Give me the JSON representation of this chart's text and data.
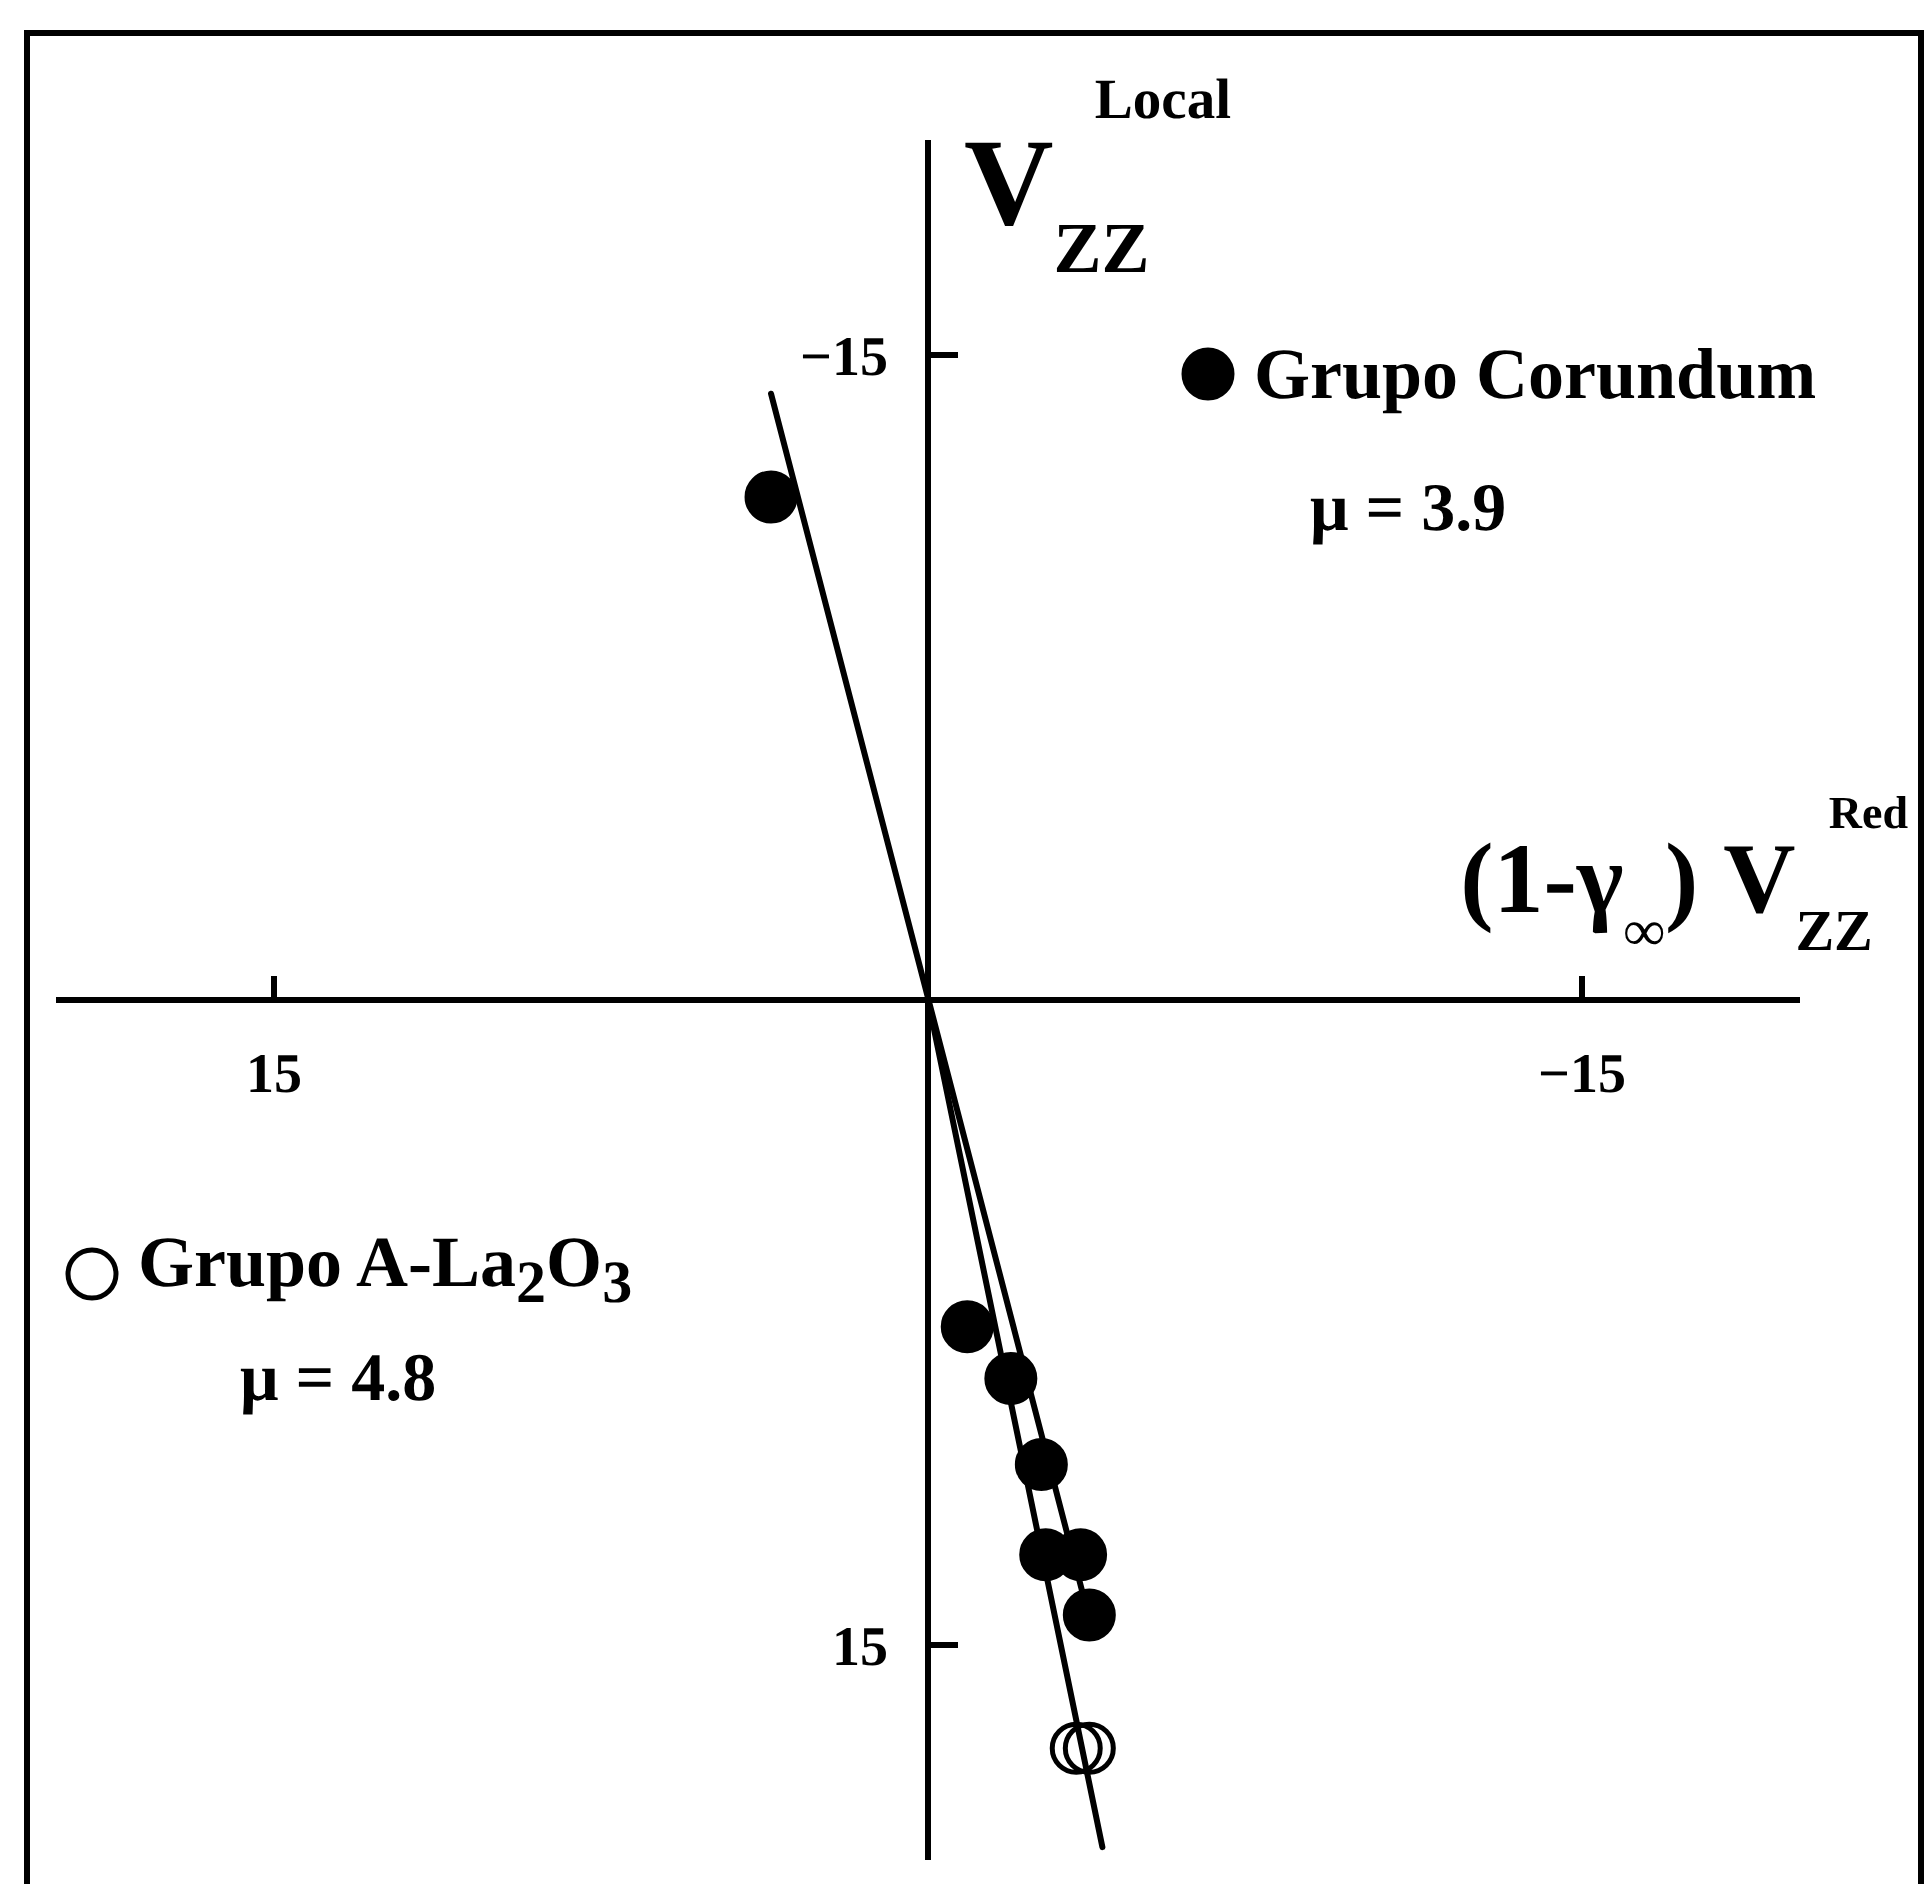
{
  "chart_data": {
    "type": "scatter",
    "xlabel": "(1-γ$_{∞}$) V$_{ZZ}$$^{Red}$",
    "ylabel": "V$_{ZZ}$$^{Local}$",
    "xlim": [
      20,
      -20
    ],
    "ylim": [
      20,
      -20
    ],
    "xticks": [
      15,
      -15
    ],
    "yticks": [
      -15,
      15
    ],
    "marker": "circle",
    "legend": "top right",
    "annotations": [
      "μ = 3.9",
      "μ = 4.8"
    ],
    "series": [
      {
        "name": "Grupo Corundum",
        "color": "#000000",
        "x": [
          3.6,
          -0.9,
          -1.9,
          -2.6,
          -2.7,
          -3.5,
          -3.7
        ],
        "values": [
          -11.7,
          7.6,
          8.8,
          10.8,
          12.9,
          12.9,
          14.3
        ]
      },
      {
        "name": "Grupo A-La$_{2}$O$_{3}$",
        "color": "#000000",
        "marker": "circle-open",
        "x": [
          -3.4,
          -3.7
        ],
        "values": [
          17.4,
          17.4
        ]
      },
      {
        "type": "line",
        "color": "#000000",
        "marker": "none",
        "x": [
          3.6,
          -3.6
        ],
        "values": [
          -14.1,
          14.0
        ]
      },
      {
        "type": "line",
        "color": "#000000",
        "marker": "none",
        "x": [
          0,
          -4.0
        ],
        "values": [
          0,
          19.7
        ]
      }
    ]
  }
}
